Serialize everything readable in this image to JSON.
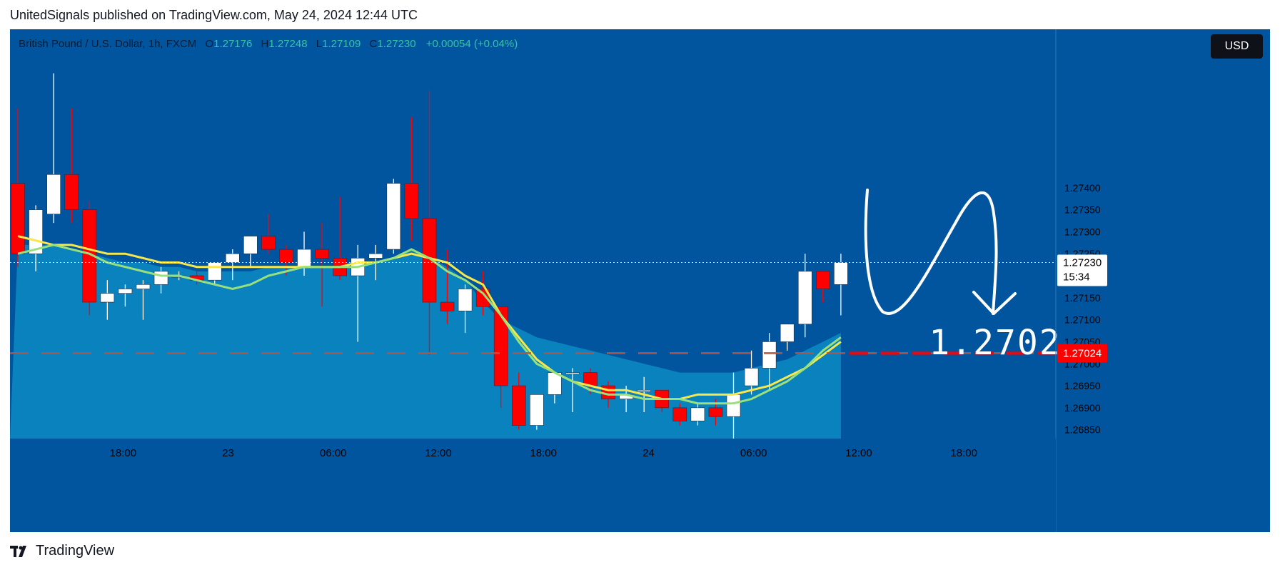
{
  "header": {
    "published": "UnitedSignals published on TradingView.com, May 24, 2024 12:44 UTC"
  },
  "legend": {
    "symbol": "British Pound / U.S. Dollar, 1h, FXCM",
    "o_label": "O",
    "o": "1.27176",
    "h_label": "H",
    "h": "1.27248",
    "l_label": "L",
    "l": "1.27109",
    "c_label": "C",
    "c": "1.27230",
    "change": "+0.00054 (+0.04%)"
  },
  "currency": "USD",
  "current_price": {
    "value": "1.27230",
    "countdown": "15:34"
  },
  "level_label": "1.27024",
  "annotation": "1.2702",
  "footer": {
    "brand": "TradingView"
  },
  "colors": {
    "background": "#01559f",
    "area": "#0a8bc2",
    "bull": "#ffffff",
    "bear": "#ff0000",
    "ma_fast": "#98e07c",
    "ma_slow": "#f7e74a",
    "level": "#ff0000"
  },
  "chart_data": {
    "type": "candlestick",
    "title": "British Pound / U.S. Dollar, 1h, FXCM",
    "ylim": [
      1.2683,
      1.2776
    ],
    "xlim_hours": [
      -4.3,
      35.5
    ],
    "y_ticks": [
      "1.27400",
      "1.27350",
      "1.27300",
      "1.27250",
      "1.27200",
      "1.27150",
      "1.27100",
      "1.27050",
      "1.27000",
      "1.26950",
      "1.26900",
      "1.26850"
    ],
    "x_ticks": [
      {
        "label": "18:00",
        "hour": 0
      },
      {
        "label": "23",
        "hour": 4
      },
      {
        "label": "06:00",
        "hour": 8
      },
      {
        "label": "12:00",
        "hour": 12
      },
      {
        "label": "18:00",
        "hour": 16
      },
      {
        "label": "24",
        "hour": 20
      },
      {
        "label": "06:00",
        "hour": 24
      },
      {
        "label": "12:00",
        "hour": 28
      },
      {
        "label": "18:00",
        "hour": 32
      }
    ],
    "candles": [
      {
        "o": 1.2741,
        "h": 1.2758,
        "l": 1.2722,
        "c": 1.2725
      },
      {
        "o": 1.2725,
        "h": 1.2736,
        "l": 1.2721,
        "c": 1.2735
      },
      {
        "o": 1.2734,
        "h": 1.2766,
        "l": 1.2732,
        "c": 1.2743
      },
      {
        "o": 1.2743,
        "h": 1.2758,
        "l": 1.2732,
        "c": 1.2735
      },
      {
        "o": 1.2735,
        "h": 1.2737,
        "l": 1.2711,
        "c": 1.2714
      },
      {
        "o": 1.2714,
        "h": 1.2719,
        "l": 1.271,
        "c": 1.2716
      },
      {
        "o": 1.2716,
        "h": 1.2718,
        "l": 1.2713,
        "c": 1.2717
      },
      {
        "o": 1.2717,
        "h": 1.2719,
        "l": 1.271,
        "c": 1.2718
      },
      {
        "o": 1.2718,
        "h": 1.2722,
        "l": 1.2716,
        "c": 1.2721
      },
      {
        "o": 1.272,
        "h": 1.2721,
        "l": 1.2719,
        "c": 1.272
      },
      {
        "o": 1.272,
        "h": 1.2721,
        "l": 1.2718,
        "c": 1.2719
      },
      {
        "o": 1.2719,
        "h": 1.2723,
        "l": 1.2718,
        "c": 1.2723
      },
      {
        "o": 1.2723,
        "h": 1.2726,
        "l": 1.2719,
        "c": 1.2725
      },
      {
        "o": 1.2725,
        "h": 1.2729,
        "l": 1.2722,
        "c": 1.2729
      },
      {
        "o": 1.2729,
        "h": 1.2734,
        "l": 1.2725,
        "c": 1.2726
      },
      {
        "o": 1.2726,
        "h": 1.2727,
        "l": 1.272,
        "c": 1.2723
      },
      {
        "o": 1.2722,
        "h": 1.273,
        "l": 1.272,
        "c": 1.2726
      },
      {
        "o": 1.2726,
        "h": 1.2732,
        "l": 1.2713,
        "c": 1.2724
      },
      {
        "o": 1.2724,
        "h": 1.2738,
        "l": 1.2719,
        "c": 1.272
      },
      {
        "o": 1.272,
        "h": 1.2727,
        "l": 1.2705,
        "c": 1.2724
      },
      {
        "o": 1.2724,
        "h": 1.2727,
        "l": 1.2719,
        "c": 1.2725
      },
      {
        "o": 1.2726,
        "h": 1.2742,
        "l": 1.2725,
        "c": 1.2741
      },
      {
        "o": 1.2741,
        "h": 1.2756,
        "l": 1.2728,
        "c": 1.2733
      },
      {
        "o": 1.2733,
        "h": 1.2762,
        "l": 1.2702,
        "c": 1.2714
      },
      {
        "o": 1.2714,
        "h": 1.2726,
        "l": 1.2709,
        "c": 1.2712
      },
      {
        "o": 1.2712,
        "h": 1.2718,
        "l": 1.2707,
        "c": 1.2717
      },
      {
        "o": 1.2717,
        "h": 1.2721,
        "l": 1.2711,
        "c": 1.2713
      },
      {
        "o": 1.2713,
        "h": 1.2713,
        "l": 1.269,
        "c": 1.2695
      },
      {
        "o": 1.2695,
        "h": 1.2698,
        "l": 1.2685,
        "c": 1.2686
      },
      {
        "o": 1.2686,
        "h": 1.2693,
        "l": 1.2685,
        "c": 1.2693
      },
      {
        "o": 1.2693,
        "h": 1.2698,
        "l": 1.2691,
        "c": 1.2698
      },
      {
        "o": 1.2698,
        "h": 1.2699,
        "l": 1.2689,
        "c": 1.2698
      },
      {
        "o": 1.2698,
        "h": 1.2699,
        "l": 1.2693,
        "c": 1.2695
      },
      {
        "o": 1.2695,
        "h": 1.2696,
        "l": 1.269,
        "c": 1.2692
      },
      {
        "o": 1.2692,
        "h": 1.2695,
        "l": 1.2689,
        "c": 1.2693
      },
      {
        "o": 1.2694,
        "h": 1.2697,
        "l": 1.2689,
        "c": 1.2694
      },
      {
        "o": 1.2694,
        "h": 1.2694,
        "l": 1.2689,
        "c": 1.269
      },
      {
        "o": 1.269,
        "h": 1.2691,
        "l": 1.2686,
        "c": 1.2687
      },
      {
        "o": 1.2687,
        "h": 1.2691,
        "l": 1.2686,
        "c": 1.269
      },
      {
        "o": 1.269,
        "h": 1.2692,
        "l": 1.2686,
        "c": 1.2688
      },
      {
        "o": 1.2688,
        "h": 1.2698,
        "l": 1.2683,
        "c": 1.2693
      },
      {
        "o": 1.2695,
        "h": 1.2703,
        "l": 1.2693,
        "c": 1.2699
      },
      {
        "o": 1.2699,
        "h": 1.2707,
        "l": 1.2694,
        "c": 1.2705
      },
      {
        "o": 1.2705,
        "h": 1.2709,
        "l": 1.2703,
        "c": 1.2709
      },
      {
        "o": 1.2709,
        "h": 1.2725,
        "l": 1.2706,
        "c": 1.2721
      },
      {
        "o": 1.2721,
        "h": 1.2721,
        "l": 1.2714,
        "c": 1.2717
      },
      {
        "o": 1.2718,
        "h": 1.2725,
        "l": 1.2711,
        "c": 1.2723
      }
    ],
    "ma_slow": [
      1.2729,
      1.2728,
      1.2727,
      1.2727,
      1.2726,
      1.2725,
      1.2725,
      1.2724,
      1.2723,
      1.2723,
      1.2722,
      1.2722,
      1.2722,
      1.2722,
      1.2722,
      1.2722,
      1.2722,
      1.2722,
      1.2722,
      1.2723,
      1.2723,
      1.2724,
      1.2725,
      1.2724,
      1.2723,
      1.272,
      1.2718,
      1.2711,
      1.2706,
      1.2701,
      1.2698,
      1.2696,
      1.2695,
      1.2694,
      1.2694,
      1.2693,
      1.2692,
      1.2692,
      1.2693,
      1.2693,
      1.2693,
      1.2694,
      1.2695,
      1.2697,
      1.2699,
      1.2702,
      1.2705
    ],
    "ma_fast": [
      1.2725,
      1.2726,
      1.2727,
      1.2726,
      1.2725,
      1.2723,
      1.2722,
      1.2721,
      1.272,
      1.272,
      1.2719,
      1.2718,
      1.2717,
      1.2718,
      1.272,
      1.2721,
      1.2722,
      1.2722,
      1.2722,
      1.2722,
      1.2723,
      1.2724,
      1.2726,
      1.2724,
      1.2721,
      1.2719,
      1.2716,
      1.2711,
      1.2705,
      1.27,
      1.2698,
      1.2696,
      1.2694,
      1.2693,
      1.2693,
      1.2692,
      1.2692,
      1.2692,
      1.2691,
      1.2691,
      1.2691,
      1.2692,
      1.2694,
      1.2696,
      1.2699,
      1.2703,
      1.2706
    ],
    "area_top": [
      1.2727,
      1.2727,
      1.2727,
      1.2726,
      1.2725,
      1.2724,
      1.2723,
      1.2723,
      1.2722,
      1.2722,
      1.2721,
      1.2721,
      1.2721,
      1.2721,
      1.2722,
      1.2722,
      1.2722,
      1.2722,
      1.2722,
      1.2722,
      1.2723,
      1.2724,
      1.2726,
      1.2724,
      1.2722,
      1.2719,
      1.2714,
      1.271,
      1.2708,
      1.2706,
      1.2705,
      1.2704,
      1.2703,
      1.2702,
      1.2701,
      1.27,
      1.2699,
      1.2698,
      1.2698,
      1.2698,
      1.2698,
      1.2699,
      1.27,
      1.2701,
      1.2703,
      1.2705,
      1.2707
    ],
    "horizontal_level": 1.27024,
    "current_price": 1.2723
  }
}
